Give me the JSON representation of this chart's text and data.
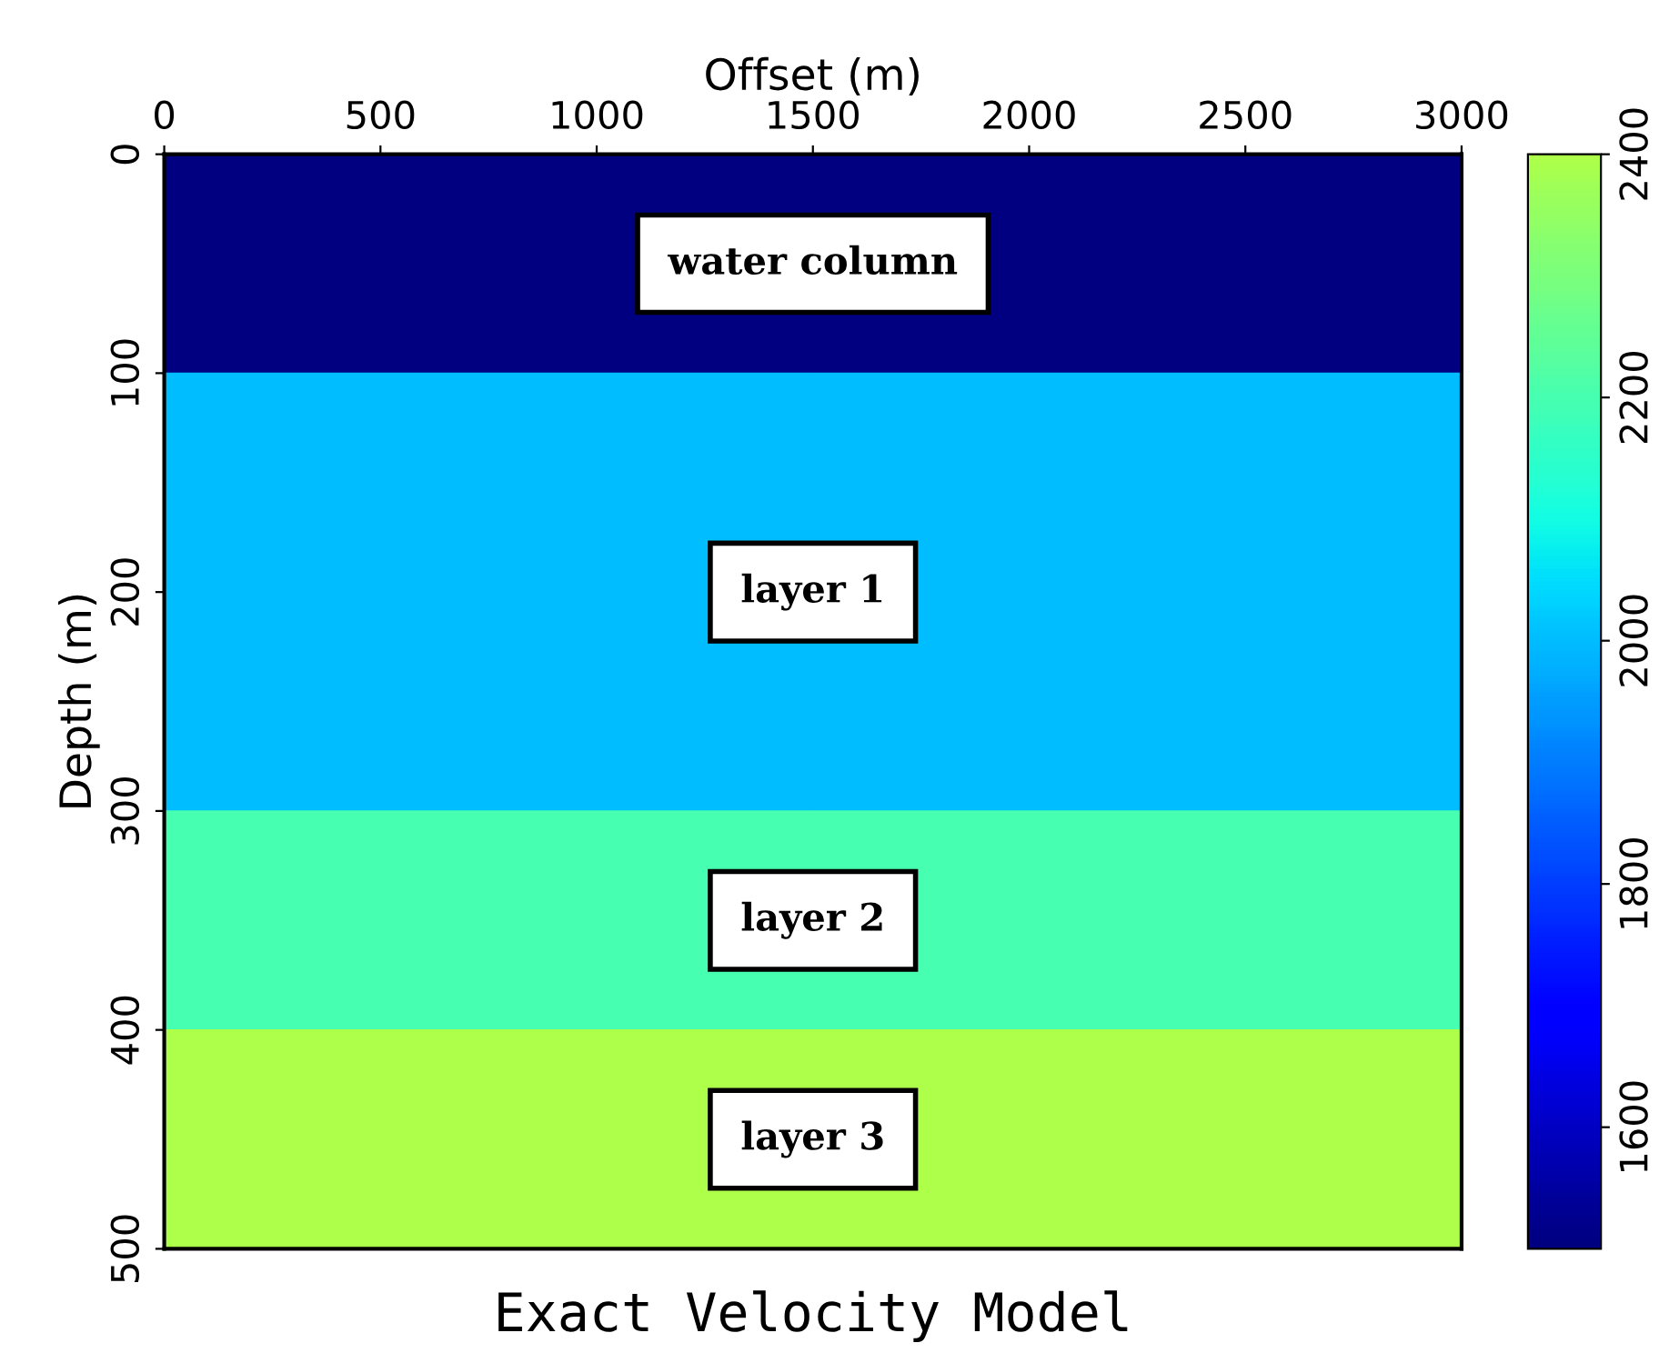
{
  "chart_data": {
    "type": "heatmap",
    "title": "Exact Velocity Model",
    "xlabel": "Offset (m)",
    "ylabel": "Depth (m)",
    "x": [
      750,
      2250
    ],
    "cells": [
      [
        1500,
        1500
      ],
      [
        2000,
        2000
      ],
      [
        2000,
        2000
      ],
      [
        2200,
        2200
      ],
      [
        2400,
        2400
      ]
    ],
    "xlim": [
      0,
      3000
    ],
    "xticks": [
      0,
      500,
      1000,
      1500,
      2000,
      2500,
      3000
    ],
    "ylim": [
      500,
      0
    ],
    "yticks": [
      0,
      100,
      200,
      300,
      400,
      500
    ],
    "clim": [
      1500,
      2400
    ],
    "cticks": [
      1600,
      1800,
      2000,
      2200,
      2400
    ],
    "annotations": [
      "water column",
      "layer 1",
      "layer 2",
      "layer 3"
    ]
  }
}
